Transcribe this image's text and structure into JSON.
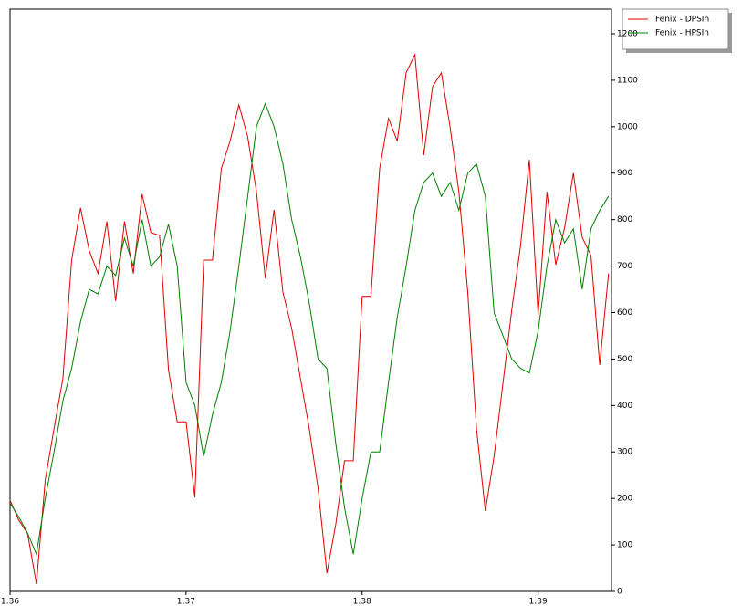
{
  "chart_data": {
    "type": "line",
    "x": [
      0,
      3,
      6,
      9,
      12,
      15,
      18,
      21,
      24,
      27,
      30,
      33,
      36,
      39,
      42,
      45,
      48,
      51,
      54,
      57,
      60,
      63,
      66,
      69,
      72,
      75,
      78,
      81,
      84,
      87,
      90,
      93,
      96,
      99,
      102,
      105,
      108,
      111,
      114,
      117,
      120,
      123,
      126,
      129,
      132,
      135,
      138,
      141,
      144,
      147,
      150,
      153,
      156,
      159,
      162,
      165,
      168,
      171,
      174,
      177,
      180,
      183,
      186,
      189,
      192,
      195,
      198,
      201,
      204
    ],
    "series": [
      {
        "name": "Fenix - DPSIn",
        "color": "#e00000",
        "values": [
          196,
          153,
          124,
          16,
          240,
          350,
          458,
          713,
          825,
          733,
          684,
          796,
          625,
          796,
          684,
          855,
          772,
          766,
          477,
          365,
          365,
          202,
          713,
          713,
          910,
          969,
          1047,
          978,
          860,
          674,
          821,
          644,
          566,
          458,
          350,
          222,
          39,
          143,
          281,
          281,
          635,
          635,
          910,
          1018,
          969,
          1116,
          1155,
          939,
          1086,
          1116,
          998,
          860,
          644,
          350,
          173,
          291,
          448,
          605,
          743,
          929,
          595,
          860,
          703,
          782,
          900,
          762,
          723,
          487,
          684
        ]
      },
      {
        "name": "Fenix - HPSIn",
        "color": "#008000",
        "values": [
          190,
          160,
          125,
          80,
          200,
          300,
          410,
          480,
          580,
          650,
          640,
          700,
          680,
          760,
          700,
          800,
          700,
          720,
          790,
          700,
          450,
          400,
          290,
          380,
          450,
          560,
          700,
          850,
          1000,
          1050,
          1000,
          920,
          800,
          720,
          620,
          500,
          480,
          320,
          180,
          80,
          200,
          300,
          300,
          450,
          590,
          700,
          820,
          880,
          900,
          850,
          880,
          820,
          900,
          920,
          850,
          600,
          550,
          500,
          480,
          470,
          560,
          700,
          800,
          750,
          780,
          650,
          780,
          820,
          850
        ]
      }
    ],
    "xlim": [
      0,
      205
    ],
    "xticks": [
      {
        "value": 0,
        "label": "1:36"
      },
      {
        "value": 60,
        "label": "1:37"
      },
      {
        "value": 120,
        "label": "1:38"
      },
      {
        "value": 180,
        "label": "1:39"
      }
    ],
    "ylim": [
      0,
      1253
    ],
    "yticks": [
      0,
      100,
      200,
      300,
      400,
      500,
      600,
      700,
      800,
      900,
      1000,
      1100,
      1200
    ]
  }
}
